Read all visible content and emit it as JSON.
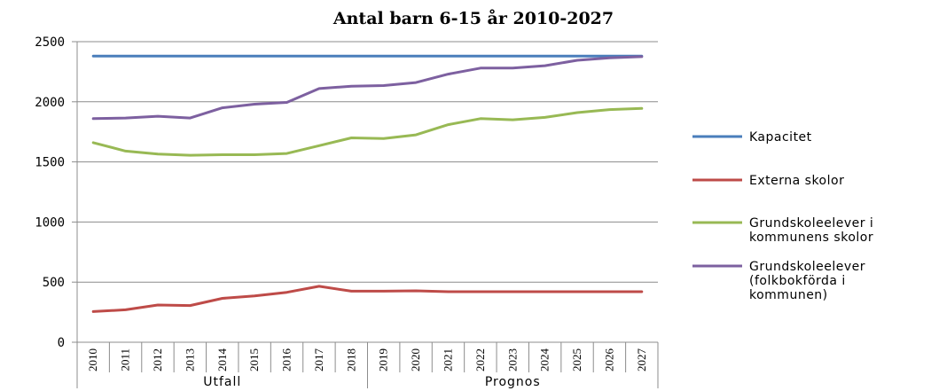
{
  "chart_data": {
    "type": "line",
    "title": "Antal barn 6-15 år 2010-2027",
    "xlabel": "",
    "ylabel": "",
    "ylim": [
      0,
      2500
    ],
    "yticks": [
      "0",
      "500",
      "1000",
      "1500",
      "2000",
      "2500"
    ],
    "categories": [
      "2010",
      "2011",
      "2012",
      "2013",
      "2014",
      "2015",
      "2016",
      "2017",
      "2018",
      "2019",
      "2020",
      "2021",
      "2022",
      "2023",
      "2024",
      "2025",
      "2026",
      "2027"
    ],
    "groups": [
      {
        "label": "Utfall",
        "from": 0,
        "to": 8
      },
      {
        "label": "Prognos",
        "from": 9,
        "to": 17
      }
    ],
    "grid": "horizontal",
    "legend_position": "right",
    "series": [
      {
        "name": "Kapacitet",
        "color": "#4a7ebb",
        "values": [
          2380,
          2380,
          2380,
          2380,
          2380,
          2380,
          2380,
          2380,
          2380,
          2380,
          2380,
          2380,
          2380,
          2380,
          2380,
          2380,
          2380,
          2380
        ]
      },
      {
        "name": "Externa skolor",
        "color": "#be4b48",
        "values": [
          255,
          270,
          310,
          305,
          365,
          385,
          415,
          465,
          425,
          425,
          428,
          420,
          420,
          420,
          420,
          420,
          420,
          420
        ]
      },
      {
        "name": "Grundskoleelever i kommunens skolor",
        "color": "#98b954",
        "values": [
          1660,
          1590,
          1565,
          1555,
          1560,
          1560,
          1570,
          1635,
          1700,
          1695,
          1725,
          1810,
          1860,
          1850,
          1870,
          1910,
          1935,
          1945
        ]
      },
      {
        "name": "Grundskoleelever (folkbokförda i kommunen)",
        "color": "#7d60a0",
        "values": [
          1860,
          1865,
          1880,
          1865,
          1950,
          1980,
          1995,
          2110,
          2130,
          2135,
          2160,
          2230,
          2280,
          2280,
          2300,
          2345,
          2365,
          2375
        ]
      }
    ],
    "legend_lines": [
      [
        "Kapacitet"
      ],
      [
        "Externa skolor"
      ],
      [
        "Grundskoleelever i",
        "kommunens skolor"
      ],
      [
        "Grundskoleelever",
        "(folkbokförda i",
        "kommunen)"
      ]
    ]
  }
}
